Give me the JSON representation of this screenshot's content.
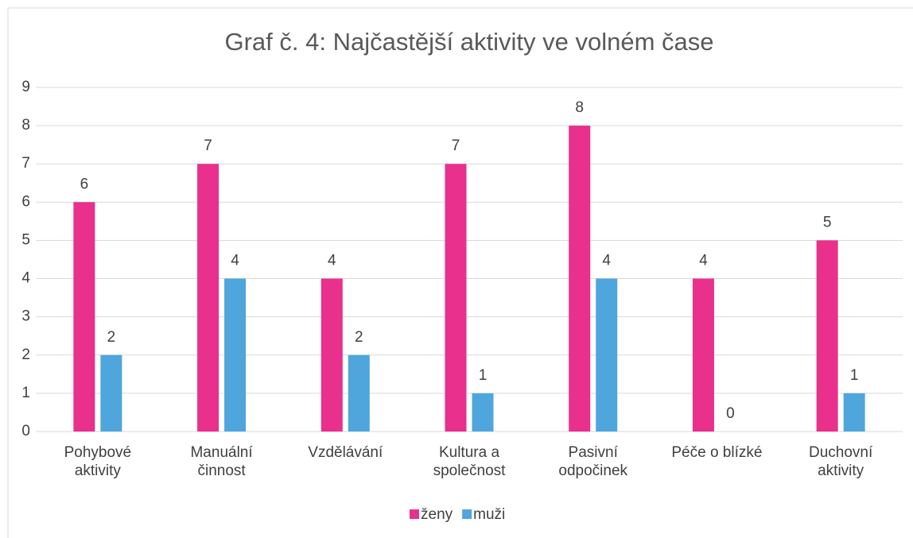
{
  "chart_data": {
    "type": "bar",
    "title": "Graf č. 4: Najčastější aktivity ve volném čase",
    "categories": [
      "Pohybové aktivity",
      "Manuální činnost",
      "Vzdělávání",
      "Kultura a společnost",
      "Pasivní odpočinek",
      "Péče o blízké",
      "Duchovní aktivity"
    ],
    "series": [
      {
        "name": "ženy",
        "color": "#e8308c",
        "values": [
          6,
          7,
          4,
          7,
          8,
          4,
          5
        ]
      },
      {
        "name": "muži",
        "color": "#4ea6dc",
        "values": [
          2,
          4,
          2,
          1,
          4,
          0,
          1
        ]
      }
    ],
    "ylim": [
      0,
      9
    ],
    "yticks": [
      0,
      1,
      2,
      3,
      4,
      5,
      6,
      7,
      8,
      9
    ],
    "grid": true,
    "legend": "bottom"
  }
}
